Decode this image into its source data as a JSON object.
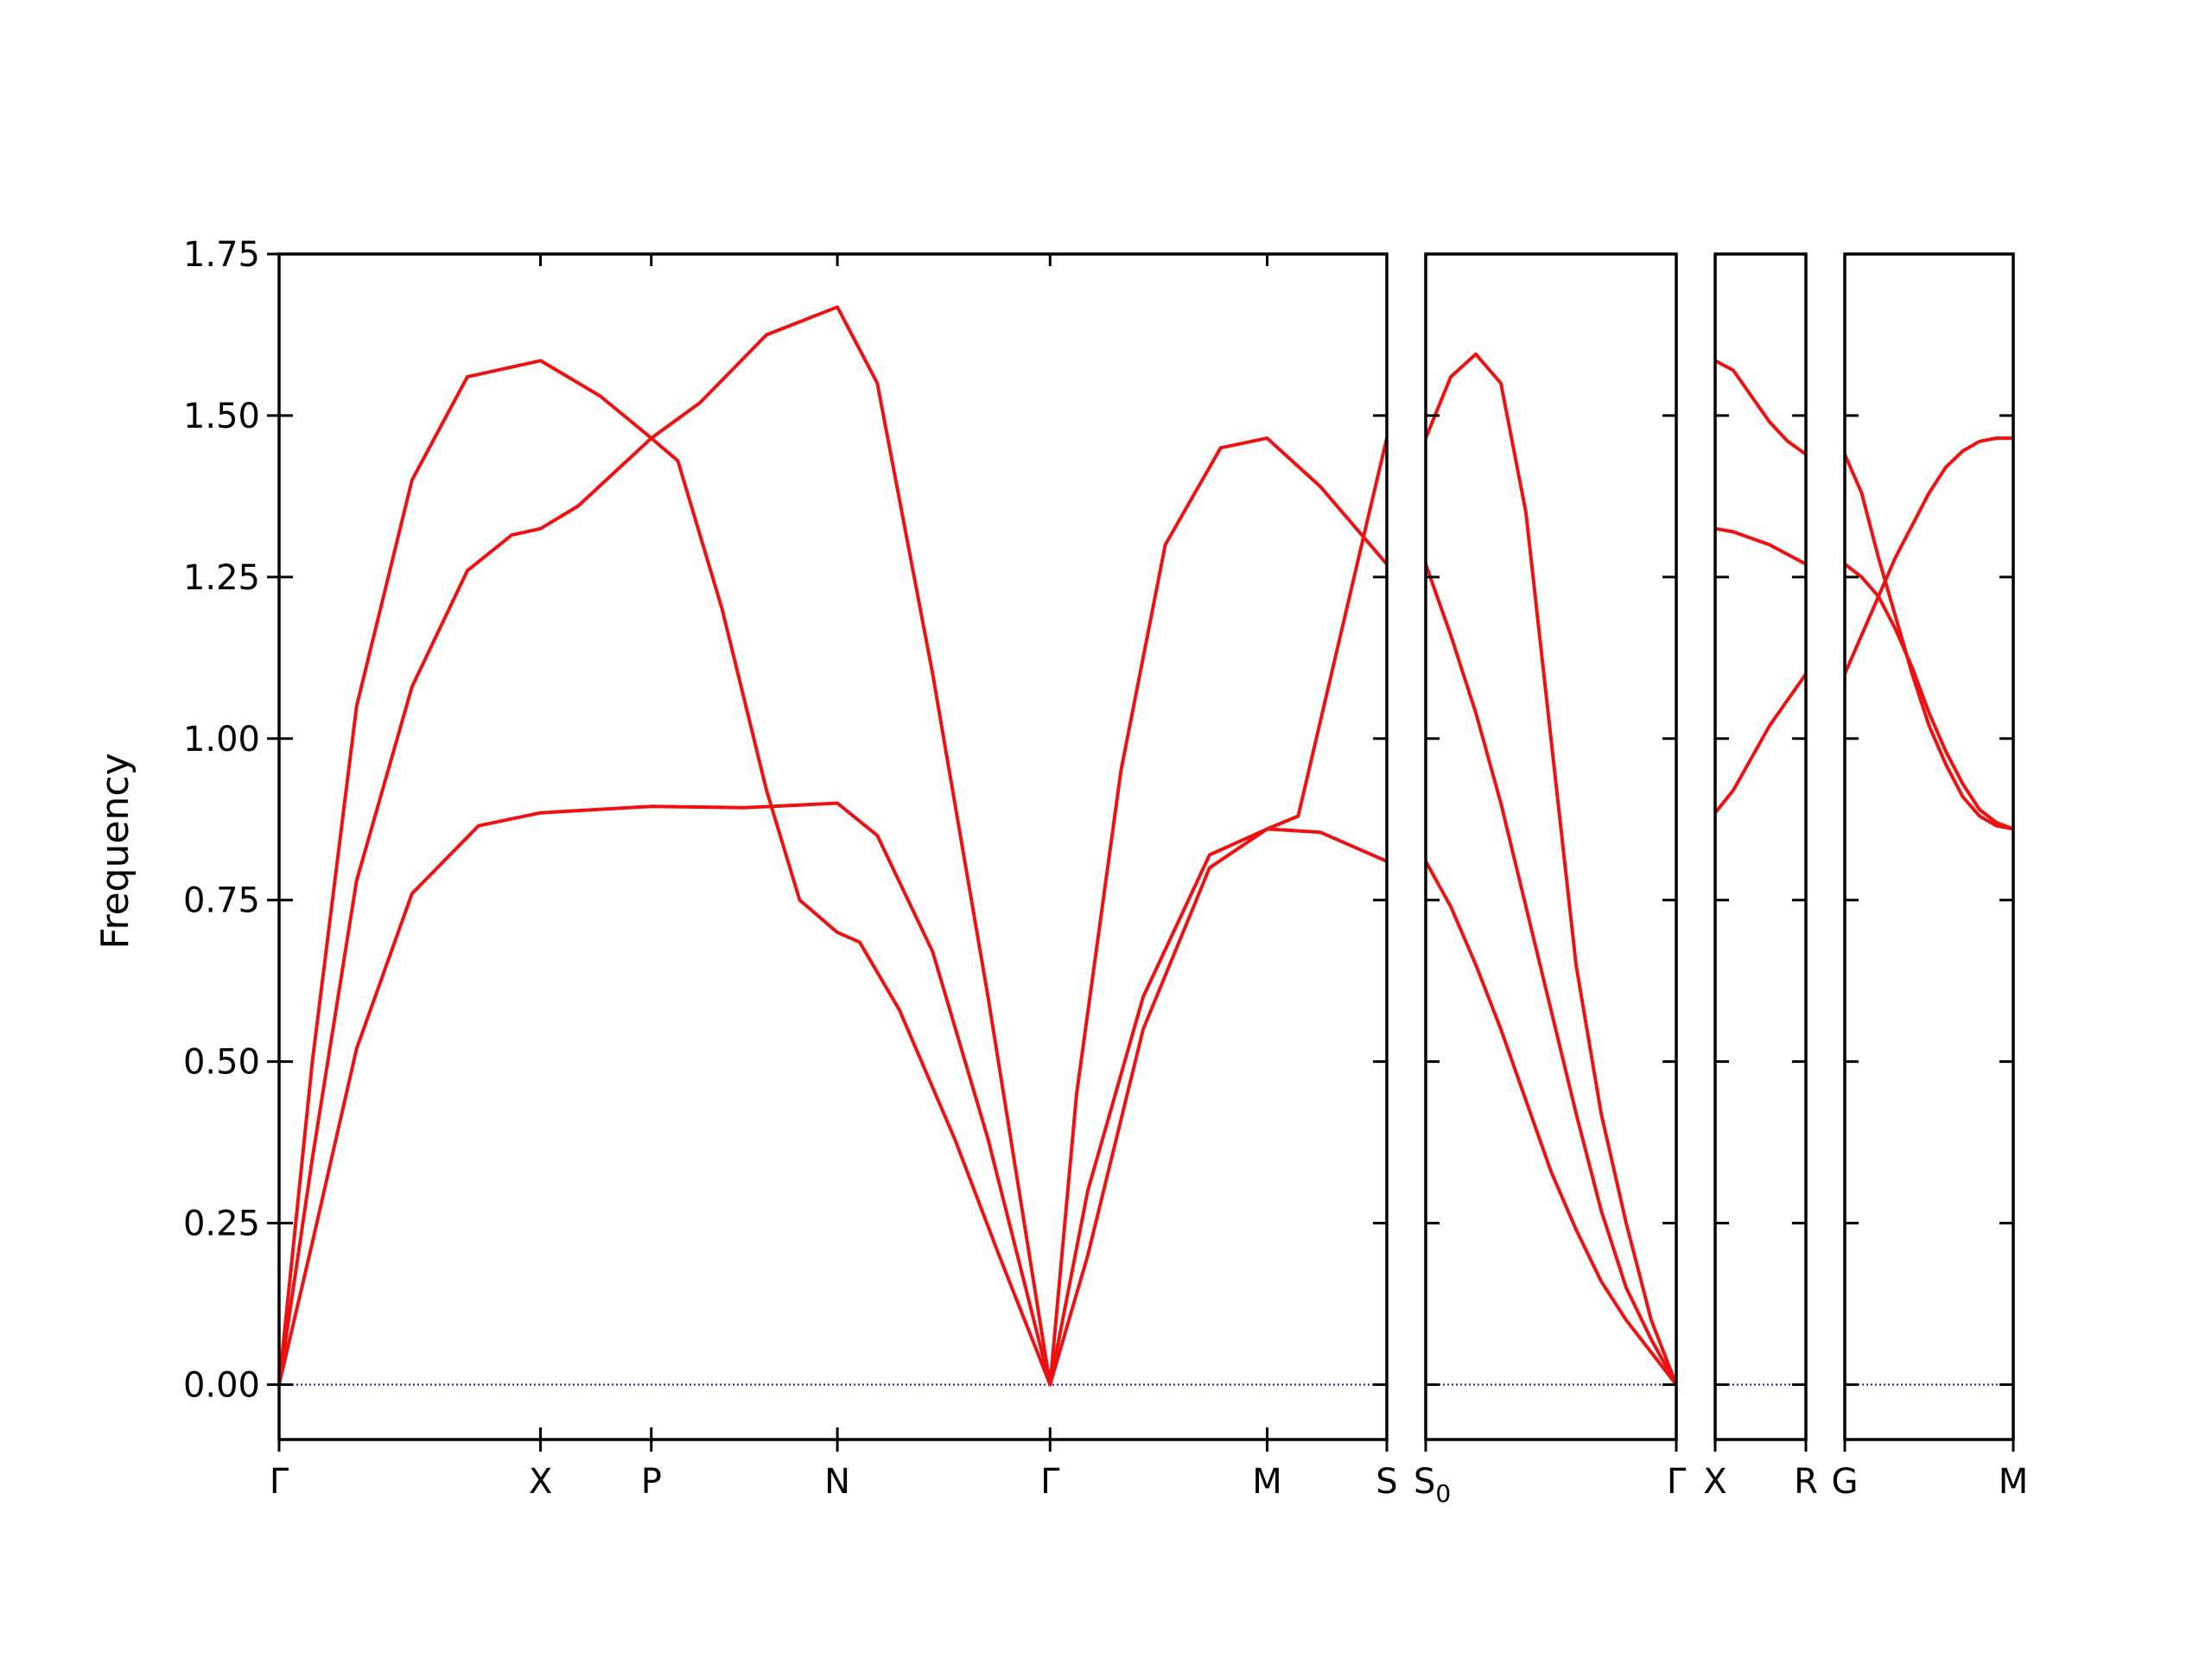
{
  "chart_data": {
    "type": "line",
    "ylabel": "Frequency",
    "ylim": [
      -0.085,
      1.75
    ],
    "yticks": [
      0.0,
      0.25,
      0.5,
      0.75,
      1.0,
      1.25,
      1.5,
      1.75
    ],
    "ytick_labels": [
      "0.00",
      "0.25",
      "0.50",
      "0.75",
      "1.00",
      "1.25",
      "1.50",
      "1.75"
    ],
    "line_color": "#ee1111",
    "zero_line_color": "#1111cc",
    "panels": [
      {
        "x_range": [
          0,
          5
        ],
        "ticks": [
          {
            "x": 0.0,
            "label": "Γ",
            "sub": ""
          },
          {
            "x": 1.18,
            "label": "X",
            "sub": ""
          },
          {
            "x": 1.68,
            "label": "P",
            "sub": ""
          },
          {
            "x": 2.52,
            "label": "N",
            "sub": ""
          },
          {
            "x": 3.48,
            "label": "Γ",
            "sub": ""
          },
          {
            "x": 4.46,
            "label": "M",
            "sub": ""
          },
          {
            "x": 5.0,
            "label": "S",
            "sub": ""
          }
        ],
        "series": [
          {
            "points": [
              [
                0,
                0
              ],
              [
                0.15,
                0.5
              ],
              [
                0.35,
                1.05
              ],
              [
                0.6,
                1.4
              ],
              [
                0.85,
                1.56
              ],
              [
                1.18,
                1.585
              ],
              [
                1.45,
                1.53
              ],
              [
                1.68,
                1.465
              ],
              [
                1.9,
                1.52
              ],
              [
                2.2,
                1.625
              ],
              [
                2.52,
                1.668
              ],
              [
                2.7,
                1.55
              ],
              [
                2.95,
                1.1
              ],
              [
                3.2,
                0.6
              ],
              [
                3.48,
                0.0
              ],
              [
                3.6,
                0.45
              ],
              [
                3.8,
                0.95
              ],
              [
                4.0,
                1.3
              ],
              [
                4.25,
                1.45
              ],
              [
                4.46,
                1.465
              ],
              [
                4.7,
                1.39
              ],
              [
                5.0,
                1.27
              ]
            ]
          },
          {
            "points": [
              [
                0,
                0
              ],
              [
                0.15,
                0.35
              ],
              [
                0.35,
                0.78
              ],
              [
                0.6,
                1.08
              ],
              [
                0.85,
                1.26
              ],
              [
                1.05,
                1.315
              ],
              [
                1.18,
                1.325
              ],
              [
                1.35,
                1.36
              ],
              [
                1.68,
                1.465
              ],
              [
                1.8,
                1.43
              ],
              [
                2.0,
                1.2
              ],
              [
                2.2,
                0.92
              ],
              [
                2.35,
                0.75
              ],
              [
                2.52,
                0.7
              ],
              [
                2.62,
                0.685
              ],
              [
                2.8,
                0.58
              ],
              [
                3.05,
                0.38
              ],
              [
                3.25,
                0.2
              ],
              [
                3.48,
                0.0
              ],
              [
                3.65,
                0.3
              ],
              [
                3.9,
                0.6
              ],
              [
                4.2,
                0.82
              ],
              [
                4.46,
                0.86
              ],
              [
                4.6,
                0.88
              ],
              [
                4.75,
                1.1
              ],
              [
                4.9,
                1.32
              ],
              [
                5.0,
                1.465
              ]
            ]
          },
          {
            "points": [
              [
                0,
                0
              ],
              [
                0.15,
                0.22
              ],
              [
                0.35,
                0.52
              ],
              [
                0.6,
                0.76
              ],
              [
                0.9,
                0.865
              ],
              [
                1.18,
                0.885
              ],
              [
                1.68,
                0.895
              ],
              [
                2.1,
                0.893
              ],
              [
                2.52,
                0.9
              ],
              [
                2.7,
                0.85
              ],
              [
                2.95,
                0.67
              ],
              [
                3.2,
                0.38
              ],
              [
                3.48,
                0.0
              ],
              [
                3.65,
                0.2
              ],
              [
                3.9,
                0.55
              ],
              [
                4.2,
                0.8
              ],
              [
                4.46,
                0.86
              ],
              [
                4.7,
                0.855
              ],
              [
                5.0,
                0.81
              ]
            ]
          }
        ]
      },
      {
        "x_range": [
          0,
          1
        ],
        "ticks": [
          {
            "x": 0.0,
            "label": "S",
            "sub": "0"
          },
          {
            "x": 1.0,
            "label": "Γ",
            "sub": ""
          }
        ],
        "series": [
          {
            "points": [
              [
                0,
                1.465
              ],
              [
                0.1,
                1.56
              ],
              [
                0.2,
                1.595
              ],
              [
                0.3,
                1.55
              ],
              [
                0.4,
                1.35
              ],
              [
                0.5,
                1.0
              ],
              [
                0.6,
                0.65
              ],
              [
                0.7,
                0.42
              ],
              [
                0.8,
                0.25
              ],
              [
                0.9,
                0.1
              ],
              [
                1.0,
                0.0
              ]
            ]
          },
          {
            "points": [
              [
                0,
                1.27
              ],
              [
                0.1,
                1.16
              ],
              [
                0.2,
                1.04
              ],
              [
                0.3,
                0.9
              ],
              [
                0.4,
                0.74
              ],
              [
                0.5,
                0.58
              ],
              [
                0.6,
                0.42
              ],
              [
                0.7,
                0.27
              ],
              [
                0.8,
                0.15
              ],
              [
                0.9,
                0.07
              ],
              [
                1.0,
                0.0
              ]
            ]
          },
          {
            "points": [
              [
                0,
                0.81
              ],
              [
                0.1,
                0.74
              ],
              [
                0.2,
                0.65
              ],
              [
                0.3,
                0.55
              ],
              [
                0.4,
                0.44
              ],
              [
                0.5,
                0.33
              ],
              [
                0.6,
                0.24
              ],
              [
                0.7,
                0.16
              ],
              [
                0.8,
                0.1
              ],
              [
                0.9,
                0.05
              ],
              [
                1.0,
                0.0
              ]
            ]
          }
        ]
      },
      {
        "x_range": [
          0,
          1
        ],
        "ticks": [
          {
            "x": 0.0,
            "label": "X",
            "sub": ""
          },
          {
            "x": 1.0,
            "label": "R",
            "sub": ""
          }
        ],
        "series": [
          {
            "points": [
              [
                0,
                1.585
              ],
              [
                0.2,
                1.57
              ],
              [
                0.4,
                1.53
              ],
              [
                0.6,
                1.49
              ],
              [
                0.8,
                1.46
              ],
              [
                1.0,
                1.44
              ]
            ]
          },
          {
            "points": [
              [
                0,
                1.325
              ],
              [
                0.2,
                1.32
              ],
              [
                0.4,
                1.31
              ],
              [
                0.6,
                1.3
              ],
              [
                0.8,
                1.285
              ],
              [
                1.0,
                1.27
              ]
            ]
          },
          {
            "points": [
              [
                0,
                0.885
              ],
              [
                0.2,
                0.92
              ],
              [
                0.4,
                0.97
              ],
              [
                0.6,
                1.02
              ],
              [
                0.8,
                1.06
              ],
              [
                1.0,
                1.1
              ]
            ]
          }
        ]
      },
      {
        "x_range": [
          0,
          1
        ],
        "ticks": [
          {
            "x": 0.0,
            "label": "G",
            "sub": ""
          },
          {
            "x": 1.0,
            "label": "M",
            "sub": ""
          }
        ],
        "series": [
          {
            "points": [
              [
                0,
                1.44
              ],
              [
                0.1,
                1.38
              ],
              [
                0.2,
                1.28
              ],
              [
                0.3,
                1.19
              ],
              [
                0.4,
                1.1
              ],
              [
                0.5,
                1.02
              ],
              [
                0.6,
                0.96
              ],
              [
                0.7,
                0.91
              ],
              [
                0.8,
                0.88
              ],
              [
                0.9,
                0.865
              ],
              [
                1.0,
                0.86
              ]
            ]
          },
          {
            "points": [
              [
                0,
                1.27
              ],
              [
                0.1,
                1.25
              ],
              [
                0.2,
                1.22
              ],
              [
                0.3,
                1.17
              ],
              [
                0.4,
                1.11
              ],
              [
                0.5,
                1.04
              ],
              [
                0.6,
                0.98
              ],
              [
                0.7,
                0.93
              ],
              [
                0.8,
                0.89
              ],
              [
                0.9,
                0.87
              ],
              [
                1.0,
                0.86
              ]
            ]
          },
          {
            "points": [
              [
                0,
                1.1
              ],
              [
                0.1,
                1.16
              ],
              [
                0.2,
                1.22
              ],
              [
                0.3,
                1.28
              ],
              [
                0.4,
                1.33
              ],
              [
                0.5,
                1.38
              ],
              [
                0.6,
                1.42
              ],
              [
                0.7,
                1.445
              ],
              [
                0.8,
                1.46
              ],
              [
                0.9,
                1.465
              ],
              [
                1.0,
                1.465
              ]
            ]
          }
        ]
      }
    ]
  }
}
